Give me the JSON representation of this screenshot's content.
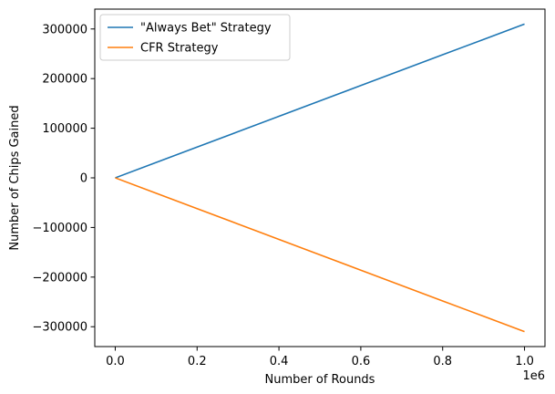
{
  "chart_data": {
    "type": "line",
    "title": "",
    "xlabel": "Number of Rounds",
    "ylabel": "Number of Chips Gained",
    "x_offset_label": "1e6",
    "xlim": [
      -0.05,
      1.05
    ],
    "ylim": [
      -340000,
      340000
    ],
    "x_ticks": [
      0.0,
      0.2,
      0.4,
      0.6,
      0.8,
      1.0
    ],
    "x_tick_labels": [
      "0.0",
      "0.2",
      "0.4",
      "0.6",
      "0.8",
      "1.0"
    ],
    "y_ticks": [
      300000,
      200000,
      100000,
      0,
      -100000,
      -200000,
      -300000
    ],
    "y_tick_labels": [
      "300000",
      "200000",
      "100000",
      "0",
      "−100000",
      "−200000",
      "−300000"
    ],
    "grid": false,
    "legend_position": "upper-left",
    "series": [
      {
        "name": "\"Always Bet\" Strategy",
        "color": "#1f77b4",
        "x": [
          0.0,
          0.1,
          0.2,
          0.3,
          0.4,
          0.5,
          0.6,
          0.7,
          0.8,
          0.9,
          1.0
        ],
        "y": [
          0,
          31000,
          62000,
          93000,
          124000,
          155000,
          186000,
          217000,
          248000,
          279000,
          310000
        ]
      },
      {
        "name": "CFR Strategy",
        "color": "#ff7f0e",
        "x": [
          0.0,
          0.1,
          0.2,
          0.3,
          0.4,
          0.5,
          0.6,
          0.7,
          0.8,
          0.9,
          1.0
        ],
        "y": [
          0,
          -31000,
          -62000,
          -93000,
          -124000,
          -155000,
          -186000,
          -217000,
          -248000,
          -279000,
          -310000
        ]
      }
    ]
  }
}
